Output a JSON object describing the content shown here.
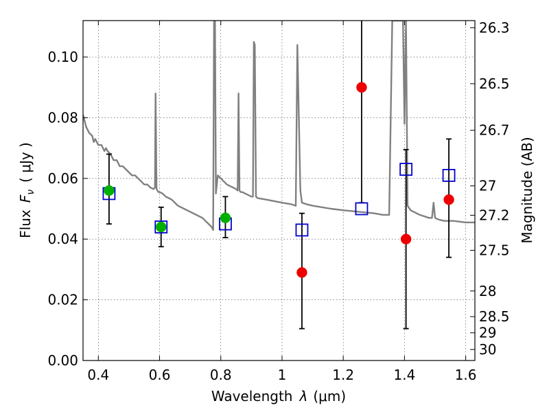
{
  "chart_data": {
    "type": "scatter",
    "title": "",
    "xlabel_text": "Wavelength",
    "xlabel_symbol": "λ",
    "xlabel_unit": "(μm)",
    "ylabel_text": "Flux",
    "ylabel_symbol": "F",
    "ylabel_sub": "ν",
    "ylabel_unit": "( μJy )",
    "right_ylabel": "Magnitude (AB)",
    "xlim": [
      0.35,
      1.63
    ],
    "ylim": [
      0.0,
      0.112
    ],
    "grid": true,
    "x_ticks": [
      0.4,
      0.6,
      0.8,
      1.0,
      1.2,
      1.4,
      1.6
    ],
    "x_tick_labels": [
      "0.4",
      "0.6",
      "0.8",
      "1",
      "1.2",
      "1.4",
      "1.6"
    ],
    "y_ticks": [
      0.0,
      0.02,
      0.04,
      0.06,
      0.08,
      0.1
    ],
    "y_tick_labels": [
      "0.00",
      "0.02",
      "0.04",
      "0.06",
      "0.08",
      "0.10"
    ],
    "right_ticks": [
      {
        "mag": 26.3,
        "label": "26.3"
      },
      {
        "mag": 26.5,
        "label": "26.5"
      },
      {
        "mag": 26.7,
        "label": "26.7"
      },
      {
        "mag": 27.0,
        "label": "27"
      },
      {
        "mag": 27.2,
        "label": "27.2"
      },
      {
        "mag": 27.5,
        "label": "27.5"
      },
      {
        "mag": 28.0,
        "label": "28"
      },
      {
        "mag": 28.5,
        "label": "28.5"
      },
      {
        "mag": 29.0,
        "label": "29"
      },
      {
        "mag": 30.0,
        "label": "30"
      }
    ],
    "colors": {
      "sed": "#808080",
      "model_boxes": "#0000cc",
      "green_points": "#00b000",
      "red_points": "#ee0000",
      "errorbars": "#000000"
    },
    "sed_model": {
      "x": [
        0.35,
        0.36,
        0.37,
        0.38,
        0.385,
        0.39,
        0.4,
        0.41,
        0.42,
        0.425,
        0.43,
        0.44,
        0.45,
        0.46,
        0.47,
        0.48,
        0.49,
        0.5,
        0.51,
        0.52,
        0.53,
        0.54,
        0.55,
        0.56,
        0.57,
        0.58,
        0.585,
        0.587,
        0.59,
        0.593,
        0.596,
        0.6,
        0.61,
        0.62,
        0.63,
        0.64,
        0.65,
        0.66,
        0.68,
        0.7,
        0.72,
        0.74,
        0.76,
        0.77,
        0.775,
        0.778,
        0.781,
        0.784,
        0.79,
        0.8,
        0.81,
        0.82,
        0.83,
        0.84,
        0.85,
        0.855,
        0.858,
        0.861,
        0.865,
        0.87,
        0.88,
        0.89,
        0.9,
        0.905,
        0.908,
        0.911,
        0.915,
        0.92,
        0.95,
        1.0,
        1.03,
        1.045,
        1.05,
        1.06,
        1.065,
        1.08,
        1.1,
        1.13,
        1.16,
        1.2,
        1.25,
        1.3,
        1.33,
        1.35,
        1.36,
        1.365,
        1.37,
        1.375,
        1.385,
        1.395,
        1.4,
        1.405,
        1.41,
        1.42,
        1.45,
        1.48,
        1.49,
        1.495,
        1.5,
        1.51,
        1.53,
        1.56,
        1.6,
        1.63
      ],
      "y": [
        0.081,
        0.077,
        0.075,
        0.074,
        0.072,
        0.073,
        0.071,
        0.071,
        0.069,
        0.07,
        0.069,
        0.068,
        0.066,
        0.066,
        0.064,
        0.064,
        0.063,
        0.062,
        0.061,
        0.061,
        0.06,
        0.059,
        0.058,
        0.058,
        0.057,
        0.0565,
        0.057,
        0.088,
        0.0565,
        0.056,
        0.0555,
        0.0555,
        0.055,
        0.054,
        0.0535,
        0.053,
        0.052,
        0.051,
        0.05,
        0.049,
        0.048,
        0.047,
        0.045,
        0.044,
        0.043,
        0.112,
        0.112,
        0.055,
        0.061,
        0.06,
        0.059,
        0.058,
        0.0575,
        0.057,
        0.0565,
        0.056,
        0.088,
        0.056,
        0.0555,
        0.0555,
        0.055,
        0.0545,
        0.054,
        0.054,
        0.105,
        0.104,
        0.054,
        0.0535,
        0.053,
        0.052,
        0.0515,
        0.051,
        0.104,
        0.056,
        0.052,
        0.0515,
        0.051,
        0.0505,
        0.05,
        0.0495,
        0.049,
        0.0485,
        0.048,
        0.048,
        0.112,
        0.112,
        0.112,
        0.112,
        0.112,
        0.112,
        0.078,
        0.112,
        0.051,
        0.0495,
        0.048,
        0.047,
        0.047,
        0.052,
        0.047,
        0.0465,
        0.046,
        0.046,
        0.0455,
        0.0455
      ]
    },
    "model_photometry": {
      "x": [
        0.435,
        0.605,
        0.815,
        1.065,
        1.26,
        1.405,
        1.545
      ],
      "y": [
        0.055,
        0.044,
        0.045,
        0.043,
        0.05,
        0.063,
        0.061
      ]
    },
    "observed_green": {
      "x": [
        0.435,
        0.605,
        0.815
      ],
      "y": [
        0.056,
        0.044,
        0.047
      ],
      "err_low": [
        0.011,
        0.0065,
        0.0065
      ],
      "err_high": [
        0.012,
        0.0065,
        0.007
      ]
    },
    "observed_red": {
      "x": [
        1.065,
        1.26,
        1.405,
        1.545
      ],
      "y": [
        0.029,
        0.09,
        0.04,
        0.053
      ],
      "err_low": [
        0.0185,
        0.038,
        0.0295,
        0.019
      ],
      "err_high": [
        0.0195,
        0.028,
        0.0295,
        0.02
      ]
    }
  }
}
